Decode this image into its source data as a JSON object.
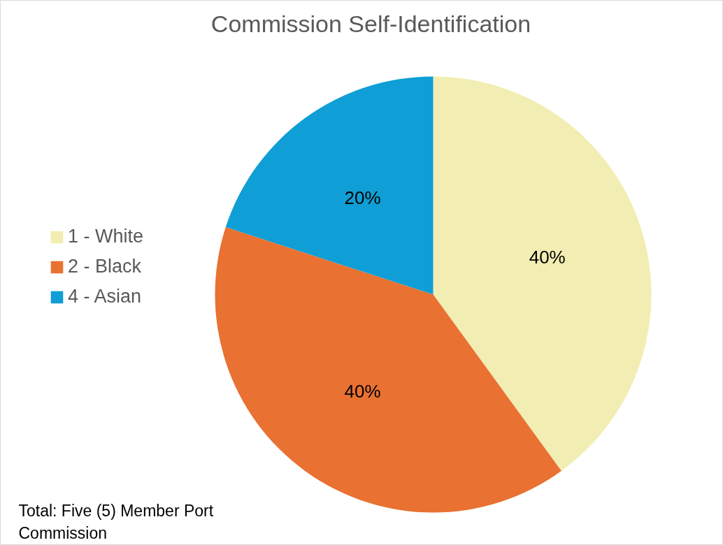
{
  "chart_data": {
    "type": "pie",
    "title": "Commission Self-Identification",
    "categories": [
      "1 - White",
      "2 - Black",
      "4 - Asian"
    ],
    "values": [
      40,
      40,
      20
    ],
    "colors": [
      "#f2edb2",
      "#e97132",
      "#0f9ed5"
    ],
    "value_labels": [
      "40%",
      "40%",
      "20%"
    ],
    "legend": "left",
    "annotations": [
      "Total: Five (5) Member Port Commission"
    ]
  }
}
